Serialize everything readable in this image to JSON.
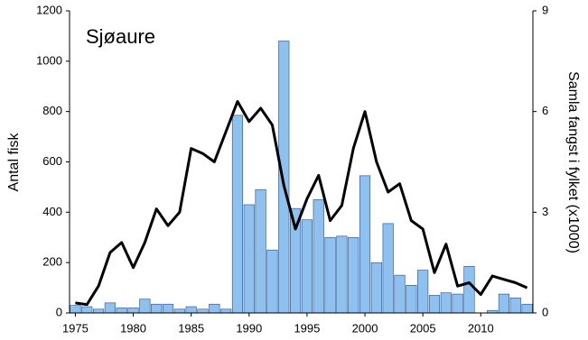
{
  "chart_data": {
    "type": "combo",
    "annotation": "Sjøaure",
    "ylabel": "Antal fisk",
    "y2label": "Samla fangst i fylket (x1000)",
    "x": [
      1975,
      1976,
      1977,
      1978,
      1979,
      1980,
      1981,
      1982,
      1983,
      1984,
      1985,
      1986,
      1987,
      1988,
      1989,
      1990,
      1991,
      1992,
      1993,
      1994,
      1995,
      1996,
      1997,
      1998,
      1999,
      2000,
      2001,
      2002,
      2003,
      2004,
      2005,
      2006,
      2007,
      2008,
      2009,
      2010,
      2011,
      2012,
      2013,
      2014
    ],
    "xlim": [
      1974.5,
      2014.5
    ],
    "xticks": [
      1975,
      1980,
      1985,
      1990,
      1995,
      2000,
      2005,
      2010
    ],
    "ylim": [
      0,
      1200
    ],
    "yticks": [
      0,
      200,
      400,
      600,
      800,
      1000,
      1200
    ],
    "y2lim": [
      0,
      9
    ],
    "y2ticks": [
      0,
      3,
      6,
      9
    ],
    "grid": false,
    "series": [
      {
        "type": "bar",
        "color": "#8ec0f0",
        "values": [
          30,
          25,
          15,
          40,
          20,
          20,
          55,
          35,
          35,
          15,
          25,
          15,
          35,
          15,
          785,
          430,
          490,
          250,
          1080,
          415,
          370,
          450,
          300,
          305,
          300,
          545,
          200,
          355,
          150,
          110,
          170,
          70,
          80,
          75,
          185,
          0,
          10,
          75,
          60,
          35
        ]
      },
      {
        "type": "line",
        "color": "#000000",
        "axis": "y2",
        "values": [
          0.3,
          0.25,
          0.8,
          1.8,
          2.1,
          1.35,
          2.1,
          3.1,
          2.6,
          3.0,
          4.9,
          4.75,
          4.5,
          5.4,
          6.3,
          5.7,
          6.1,
          5.6,
          3.8,
          2.5,
          3.4,
          4.1,
          2.75,
          3.2,
          4.9,
          6.0,
          4.5,
          3.6,
          3.85,
          2.75,
          2.5,
          1.2,
          2.05,
          0.8,
          0.9,
          0.55,
          1.1,
          1.0,
          0.9,
          0.75
        ]
      }
    ]
  }
}
